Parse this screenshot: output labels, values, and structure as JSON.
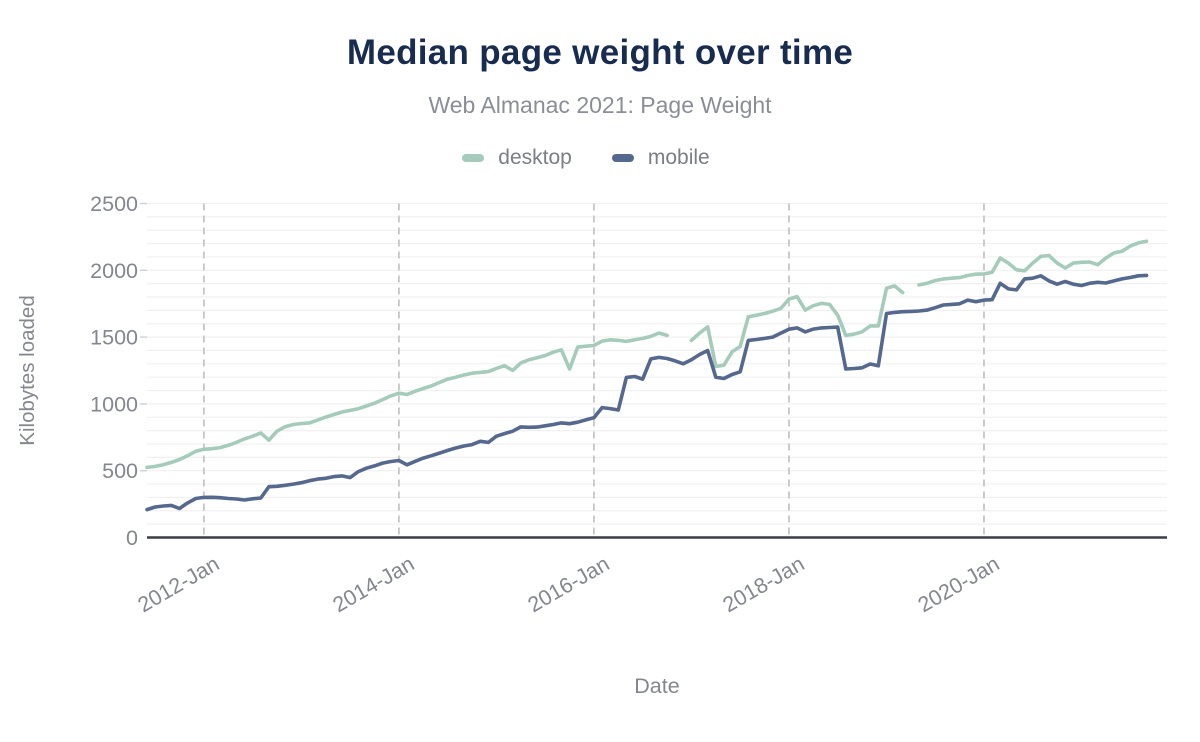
{
  "header": {
    "title": "Median page weight over time",
    "subtitle": "Web Almanac 2021: Page Weight"
  },
  "legend": {
    "items": [
      {
        "label": "desktop",
        "color": "#a5ccba"
      },
      {
        "label": "mobile",
        "color": "#55688e"
      }
    ]
  },
  "axes": {
    "y_title": "Kilobytes loaded",
    "x_title": "Date",
    "y_ticks": [
      0,
      500,
      1000,
      1500,
      2000,
      2500
    ],
    "x_ticks": [
      {
        "label": "2012-Jan",
        "month": "2012-01"
      },
      {
        "label": "2014-Jan",
        "month": "2014-01"
      },
      {
        "label": "2016-Jan",
        "month": "2016-01"
      },
      {
        "label": "2018-Jan",
        "month": "2018-01"
      },
      {
        "label": "2020-Jan",
        "month": "2020-01"
      }
    ]
  },
  "colors": {
    "title": "#182c50",
    "subtitle": "#8a8e96",
    "tick_label": "#84878e",
    "axis_line": "#3b3f45",
    "grid_minor": "#f0f0f1",
    "grid_dashed": "#c5c6c8",
    "tick_stub": "#cfd0d2"
  },
  "chart_data": {
    "type": "line",
    "title": "Median page weight over time",
    "subtitle": "Web Almanac 2021: Page Weight",
    "xlabel": "Date",
    "ylabel": "Kilobytes loaded",
    "ylim": [
      0,
      2500
    ],
    "y_tick_step": 500,
    "y_gridline_step": 100,
    "grid": "on",
    "legend_position": "top",
    "x_tick_labels": [
      "2012-Jan",
      "2014-Jan",
      "2016-Jan",
      "2018-Jan",
      "2020-Jan"
    ],
    "x": [
      "2011-06",
      "2011-07",
      "2011-08",
      "2011-09",
      "2011-10",
      "2011-11",
      "2011-12",
      "2012-01",
      "2012-02",
      "2012-03",
      "2012-04",
      "2012-05",
      "2012-06",
      "2012-07",
      "2012-08",
      "2012-09",
      "2012-10",
      "2012-11",
      "2012-12",
      "2013-01",
      "2013-02",
      "2013-03",
      "2013-04",
      "2013-05",
      "2013-06",
      "2013-07",
      "2013-08",
      "2013-09",
      "2013-10",
      "2013-11",
      "2013-12",
      "2014-01",
      "2014-02",
      "2014-03",
      "2014-04",
      "2014-05",
      "2014-06",
      "2014-07",
      "2014-08",
      "2014-09",
      "2014-10",
      "2014-11",
      "2014-12",
      "2015-01",
      "2015-02",
      "2015-03",
      "2015-04",
      "2015-05",
      "2015-06",
      "2015-07",
      "2015-08",
      "2015-09",
      "2015-10",
      "2015-11",
      "2015-12",
      "2016-01",
      "2016-02",
      "2016-03",
      "2016-04",
      "2016-05",
      "2016-06",
      "2016-07",
      "2016-08",
      "2016-09",
      "2016-10",
      "2016-11",
      "2016-12",
      "2017-01",
      "2017-02",
      "2017-03",
      "2017-04",
      "2017-05",
      "2017-06",
      "2017-07",
      "2017-08",
      "2017-09",
      "2017-10",
      "2017-11",
      "2017-12",
      "2018-01",
      "2018-02",
      "2018-03",
      "2018-04",
      "2018-05",
      "2018-06",
      "2018-07",
      "2018-08",
      "2018-09",
      "2018-10",
      "2018-11",
      "2018-12",
      "2019-01",
      "2019-02",
      "2019-03",
      "2019-04",
      "2019-05",
      "2019-06",
      "2019-07",
      "2019-08",
      "2019-09",
      "2019-10",
      "2019-11",
      "2019-12",
      "2020-01",
      "2020-02",
      "2020-03",
      "2020-04",
      "2020-05",
      "2020-06",
      "2020-07",
      "2020-08",
      "2020-09",
      "2020-10",
      "2020-11",
      "2020-12",
      "2021-01",
      "2021-02",
      "2021-03",
      "2021-04",
      "2021-05",
      "2021-06",
      "2021-07",
      "2021-08",
      "2021-09"
    ],
    "series": [
      {
        "name": "desktop",
        "color": "#a5ccba",
        "values": [
          525,
          532,
          545,
          562,
          584,
          612,
          645,
          660,
          665,
          673,
          690,
          712,
          738,
          758,
          783,
          728,
          796,
          829,
          846,
          853,
          858,
          879,
          901,
          921,
          939,
          951,
          964,
          984,
          1005,
          1032,
          1060,
          1080,
          1070,
          1095,
          1115,
          1135,
          1160,
          1186,
          1200,
          1216,
          1230,
          1236,
          1242,
          1266,
          1286,
          1251,
          1307,
          1330,
          1346,
          1362,
          1387,
          1405,
          1261,
          1425,
          1432,
          1437,
          1470,
          1480,
          1475,
          1468,
          1480,
          1490,
          1505,
          1531,
          1513,
          null,
          null,
          1475,
          1530,
          1576,
          1280,
          1290,
          1390,
          1430,
          1652,
          1664,
          1677,
          1694,
          1715,
          1785,
          1803,
          1702,
          1735,
          1752,
          1745,
          1664,
          1513,
          1522,
          1540,
          1584,
          1584,
          1866,
          1883,
          1833,
          null,
          1891,
          1903,
          1924,
          1935,
          1941,
          1945,
          1961,
          1971,
          1973,
          1984,
          2092,
          2054,
          2004,
          1996,
          2054,
          2105,
          2110,
          2054,
          2017,
          2054,
          2060,
          2062,
          2042,
          2092,
          2130,
          2143,
          2181,
          2205,
          2218
        ]
      },
      {
        "name": "mobile",
        "color": "#55688e",
        "values": [
          209,
          228,
          236,
          240,
          217,
          259,
          292,
          300,
          301,
          298,
          292,
          288,
          281,
          290,
          296,
          380,
          383,
          391,
          400,
          410,
          425,
          437,
          443,
          456,
          461,
          448,
          493,
          519,
          536,
          557,
          569,
          576,
          544,
          570,
          594,
          612,
          632,
          652,
          670,
          685,
          695,
          720,
          712,
          758,
          778,
          796,
          828,
          825,
          826,
          836,
          846,
          858,
          852,
          863,
          880,
          897,
          972,
          965,
          954,
          1198,
          1205,
          1186,
          1337,
          1348,
          1340,
          1322,
          1300,
          1330,
          1370,
          1400,
          1200,
          1190,
          1220,
          1240,
          1475,
          1482,
          1490,
          1500,
          1530,
          1559,
          1569,
          1539,
          1560,
          1569,
          1572,
          1575,
          1261,
          1265,
          1270,
          1299,
          1285,
          1677,
          1685,
          1690,
          1692,
          1695,
          1702,
          1720,
          1740,
          1745,
          1749,
          1777,
          1765,
          1777,
          1780,
          1903,
          1861,
          1853,
          1936,
          1941,
          1959,
          1921,
          1896,
          1916,
          1896,
          1886,
          1903,
          1910,
          1905,
          1921,
          1936,
          1946,
          1959,
          1962
        ]
      }
    ]
  }
}
